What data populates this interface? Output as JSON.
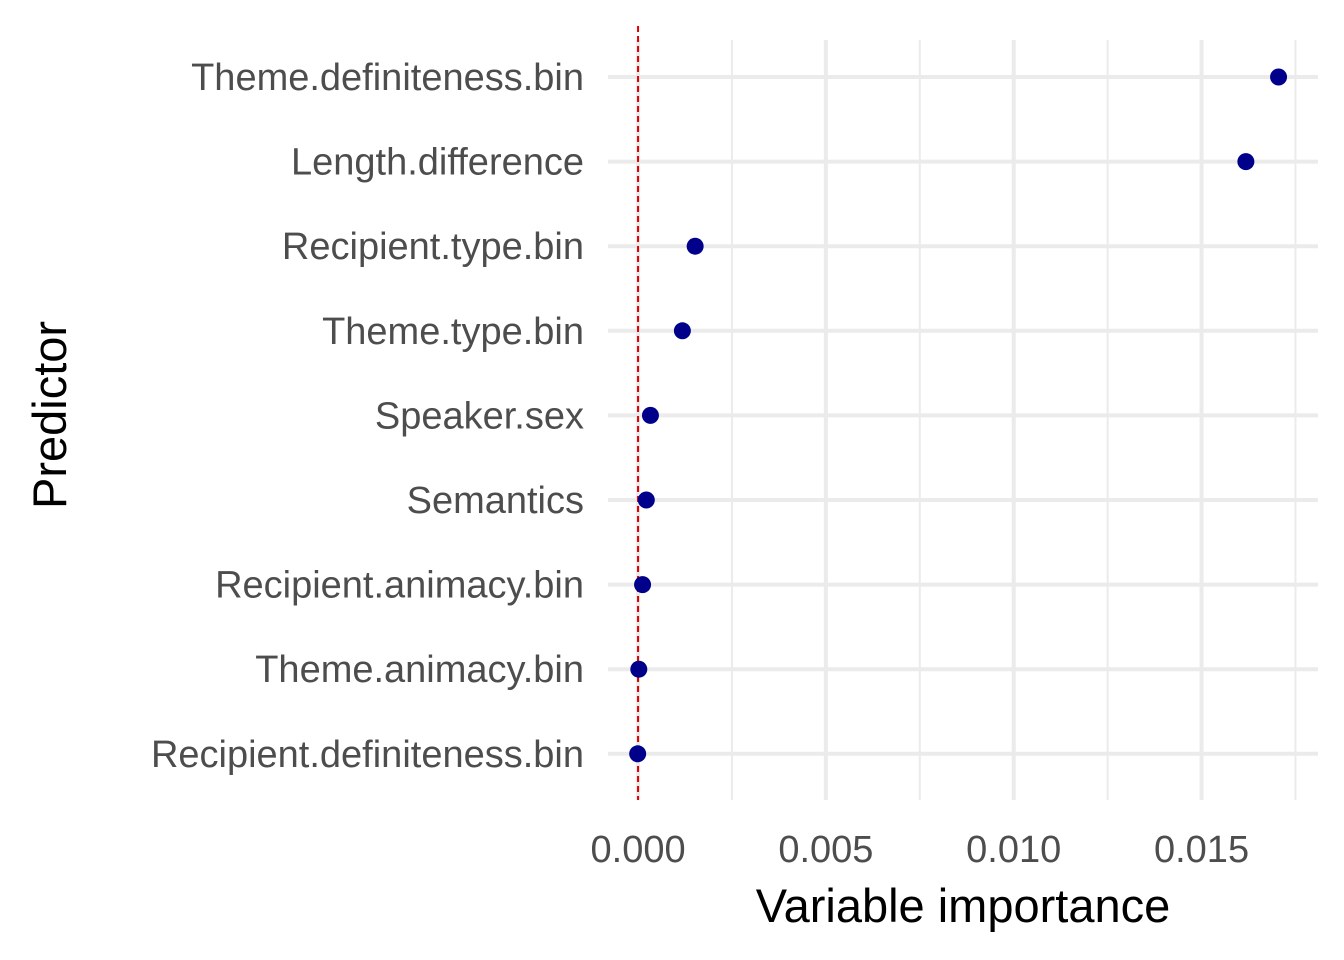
{
  "chart_data": {
    "type": "scatter",
    "title": "",
    "xlabel": "Variable importance",
    "ylabel": "Predictor",
    "xlim": [
      -0.0008,
      0.0181
    ],
    "x_ticks": [
      0.0,
      0.005,
      0.01,
      0.015
    ],
    "x_tick_labels": [
      "0.000",
      "0.005",
      "0.010",
      "0.015"
    ],
    "x_minor_ticks": [
      0.0025,
      0.0075,
      0.0125,
      0.0175
    ],
    "categories": [
      "Theme.definiteness.bin",
      "Length.difference",
      "Recipient.type.bin",
      "Theme.type.bin",
      "Speaker.sex",
      "Semantics",
      "Recipient.animacy.bin",
      "Theme.animacy.bin",
      "Recipient.definiteness.bin"
    ],
    "values": [
      0.01705,
      0.01618,
      0.00152,
      0.00118,
      0.00033,
      0.00022,
      0.00012,
      2e-05,
      -1e-05
    ],
    "reference_line": {
      "x": 0,
      "color": "#e00000",
      "style": "dashed"
    },
    "point_color": "#00008b",
    "grid": true,
    "legend": "none"
  }
}
